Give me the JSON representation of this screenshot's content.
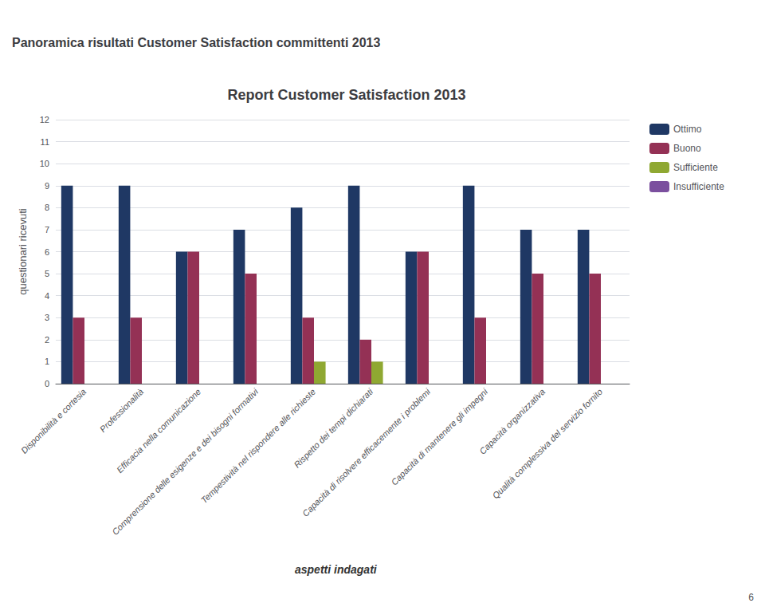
{
  "chart_data": {
    "type": "bar",
    "title": "Report Customer Satisfaction 2013",
    "subtitle": "Panoramica risultati Customer Satisfaction committenti 2013",
    "xlabel": "aspetti indagati",
    "ylabel": "questionari ricevuti",
    "annotations": [
      "6"
    ],
    "categories": [
      "Disponibilità e cortesia",
      "Professionalità",
      "Efficacia nella comunicazione",
      "Comprensione delle esigenze e dei bisogni formativi",
      "Tempestività nel rispondere alle richieste",
      "Rispetto dei tempi dichiarati",
      "Capacità di risolvere efficacemente i problemi",
      "Capacità di mantenere gli impegni",
      "Capacità organizzativa",
      "Qualità complessiva del servizio fornito"
    ],
    "series": [
      {
        "name": "Ottimo",
        "color": "#1F3864",
        "values": [
          9,
          9,
          6,
          7,
          8,
          9,
          6,
          9,
          7,
          7
        ]
      },
      {
        "name": "Buono",
        "color": "#943155",
        "values": [
          3,
          3,
          6,
          5,
          3,
          2,
          6,
          3,
          5,
          5
        ]
      },
      {
        "name": "Sufficiente",
        "color": "#8fA832",
        "values": [
          0,
          0,
          0,
          0,
          1,
          1,
          0,
          0,
          0,
          0
        ]
      },
      {
        "name": "Insufficiente",
        "color": "#7B4F9E",
        "values": [
          0,
          0,
          0,
          0,
          0,
          0,
          0,
          0,
          0,
          0
        ]
      }
    ],
    "ylim": [
      0,
      12
    ],
    "yticks": [
      0,
      1,
      2,
      3,
      4,
      5,
      6,
      7,
      8,
      9,
      10,
      11,
      12
    ],
    "grid": true,
    "legend": "right"
  }
}
